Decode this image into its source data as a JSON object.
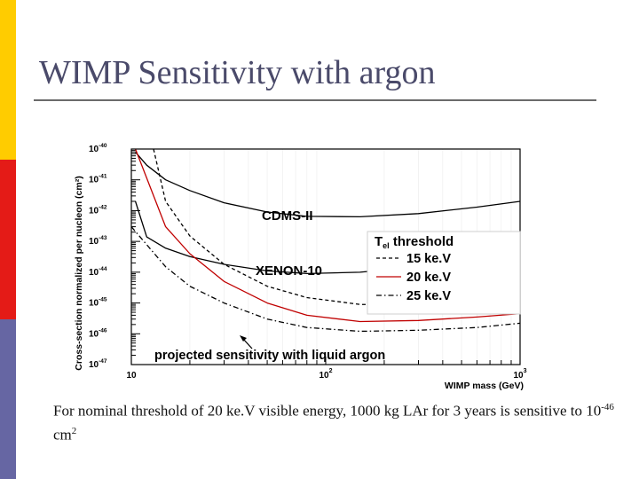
{
  "slide": {
    "title": "WIMP Sensitivity with argon",
    "caption": {
      "text1": "For nominal threshold of 20 ke.V visible energy, 1000 kg LAr for 3 years is sensitive to 10",
      "exponent": "-46",
      "text2": " cm",
      "unit_exponent": "2"
    }
  },
  "colors": {
    "bar_top": "#ffcc00",
    "bar_mid": "#e41b17",
    "bar_bottom": "#6666a3",
    "red_curve": "#c00000"
  },
  "chart_data": {
    "type": "line",
    "title": "",
    "xlabel": "WIMP mass (GeV)",
    "ylabel": "Cross-section normalized per nucleon (cm²)",
    "x_scale": "log",
    "y_scale": "log",
    "xlim": [
      10,
      1000
    ],
    "ylim": [
      1e-47,
      1e-40
    ],
    "x_ticks": [
      {
        "value": 10,
        "base": "10",
        "exp": ""
      },
      {
        "value": 100,
        "base": "10",
        "exp": "2"
      },
      {
        "value": 1000,
        "base": "10",
        "exp": "3"
      }
    ],
    "y_ticks": [
      {
        "value": 1e-40,
        "base": "10",
        "exp": "-40"
      },
      {
        "value": 1e-41,
        "base": "10",
        "exp": "-41"
      },
      {
        "value": 1e-42,
        "base": "10",
        "exp": "-42"
      },
      {
        "value": 1e-43,
        "base": "10",
        "exp": "-43"
      },
      {
        "value": 1e-44,
        "base": "10",
        "exp": "-44"
      },
      {
        "value": 1e-45,
        "base": "10",
        "exp": "-45"
      },
      {
        "value": 1e-46,
        "base": "10",
        "exp": "-46"
      },
      {
        "value": 1e-47,
        "base": "10",
        "exp": "-47"
      }
    ],
    "legend": {
      "title_main": "T",
      "title_sub": "el",
      "title_rest": " threshold",
      "entries": [
        "15 ke.V",
        "20 ke.V",
        "25 ke.V"
      ],
      "placement": "right"
    },
    "annotations": {
      "cdms": "CDMS-II",
      "xenon": "XENON-10",
      "projected": "projected sensitivity with liquid argon"
    },
    "series": [
      {
        "name": "CDMS-II",
        "style": "solid",
        "color": "#000000",
        "x": [
          10.5,
          12,
          15,
          20,
          30,
          50,
          80,
          150,
          300,
          600,
          1000
        ],
        "y": [
          8e-41,
          3e-41,
          1e-41,
          4.5e-42,
          1.8e-42,
          9e-43,
          6.5e-43,
          6.3e-43,
          8e-43,
          1.3e-42,
          2e-42
        ]
      },
      {
        "name": "XENON-10",
        "style": "solid",
        "color": "#000000",
        "x": [
          10.5,
          12,
          15,
          20,
          30,
          50,
          80,
          150,
          300,
          600,
          1000
        ],
        "y": [
          2e-42,
          1.4e-43,
          6e-44,
          3.2e-44,
          1.8e-44,
          1.1e-44,
          9e-45,
          1e-44,
          1.5e-44,
          2.3e-44,
          3e-44
        ]
      },
      {
        "name": "15 ke.V",
        "style": "dashed",
        "color": "#000000",
        "x": [
          13,
          15,
          20,
          30,
          50,
          80,
          150,
          300,
          600,
          1000
        ],
        "y": [
          1e-40,
          2e-42,
          1.5e-43,
          1.8e-44,
          3.5e-45,
          1.5e-45,
          9e-46,
          8.5e-46,
          1.1e-45,
          1.5e-45
        ]
      },
      {
        "name": "20 ke.V",
        "style": "solid",
        "color": "#c00000",
        "x": [
          10.5,
          15,
          20,
          30,
          50,
          80,
          150,
          300,
          600,
          1000
        ],
        "y": [
          1e-40,
          3e-43,
          4e-44,
          5e-45,
          1e-45,
          4e-46,
          2.5e-46,
          2.7e-46,
          3.5e-46,
          4.5e-46
        ]
      },
      {
        "name": "25 ke.V",
        "style": "dashdot",
        "color": "#000000",
        "x": [
          10,
          15,
          20,
          30,
          50,
          80,
          150,
          300,
          600,
          1000
        ],
        "y": [
          3e-43,
          1.5e-44,
          3.5e-45,
          1e-45,
          3e-46,
          1.6e-46,
          1.2e-46,
          1.3e-46,
          1.6e-46,
          2.2e-46
        ]
      }
    ]
  }
}
